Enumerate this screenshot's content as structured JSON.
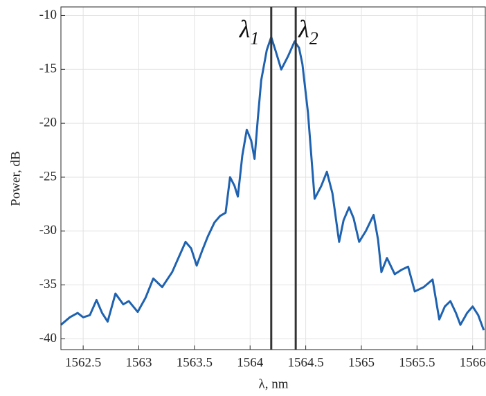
{
  "chart_data": {
    "type": "line",
    "xlabel": "λ, nm",
    "ylabel": "Power, dB",
    "xlim": [
      1562.3,
      1566.12
    ],
    "ylim": [
      -41,
      -9.2
    ],
    "xticks": [
      1562.5,
      1563,
      1563.5,
      1564,
      1564.5,
      1565,
      1565.5,
      1566
    ],
    "yticks": [
      -40,
      -35,
      -30,
      -25,
      -20,
      -15,
      -10
    ],
    "grid": true,
    "series": [
      {
        "color": "#1f62b0",
        "x": [
          1562.3,
          1562.38,
          1562.45,
          1562.5,
          1562.56,
          1562.62,
          1562.67,
          1562.72,
          1562.79,
          1562.86,
          1562.91,
          1562.99,
          1563.06,
          1563.13,
          1563.21,
          1563.3,
          1563.42,
          1563.47,
          1563.52,
          1563.57,
          1563.62,
          1563.68,
          1563.73,
          1563.78,
          1563.82,
          1563.86,
          1563.89,
          1563.93,
          1563.97,
          1564.01,
          1564.04,
          1564.07,
          1564.1,
          1564.15,
          1564.19,
          1564.23,
          1564.28,
          1564.34,
          1564.4,
          1564.44,
          1564.47,
          1564.52,
          1564.58,
          1564.64,
          1564.69,
          1564.74,
          1564.8,
          1564.84,
          1564.89,
          1564.93,
          1564.98,
          1565.04,
          1565.11,
          1565.15,
          1565.18,
          1565.23,
          1565.3,
          1565.36,
          1565.42,
          1565.48,
          1565.56,
          1565.64,
          1565.7,
          1565.75,
          1565.8,
          1565.85,
          1565.89,
          1565.95,
          1566.0,
          1566.05,
          1566.1
        ],
        "values": [
          -38.7,
          -38.0,
          -37.6,
          -38.0,
          -37.8,
          -36.4,
          -37.6,
          -38.4,
          -35.8,
          -36.8,
          -36.5,
          -37.5,
          -36.2,
          -34.4,
          -35.2,
          -33.8,
          -31.0,
          -31.6,
          -33.2,
          -31.8,
          -30.5,
          -29.2,
          -28.6,
          -28.3,
          -25.0,
          -25.8,
          -26.8,
          -23.0,
          -20.6,
          -21.6,
          -23.3,
          -19.5,
          -16.0,
          -13.2,
          -12.0,
          -13.3,
          -15.0,
          -13.8,
          -12.4,
          -13.0,
          -14.5,
          -19.0,
          -27.0,
          -25.8,
          -24.5,
          -26.5,
          -31.0,
          -29.0,
          -27.8,
          -28.8,
          -31.0,
          -30.0,
          -28.5,
          -30.8,
          -33.8,
          -32.5,
          -34.0,
          -33.6,
          -33.3,
          -35.6,
          -35.2,
          -34.5,
          -38.2,
          -37.0,
          -36.5,
          -37.6,
          -38.7,
          -37.6,
          -37.0,
          -37.8,
          -39.2
        ]
      }
    ],
    "vlines": [
      1564.19,
      1564.41
    ],
    "annotations": [
      {
        "text": "λ",
        "subscript": "1"
      },
      {
        "text": "λ",
        "subscript": "2"
      }
    ]
  }
}
